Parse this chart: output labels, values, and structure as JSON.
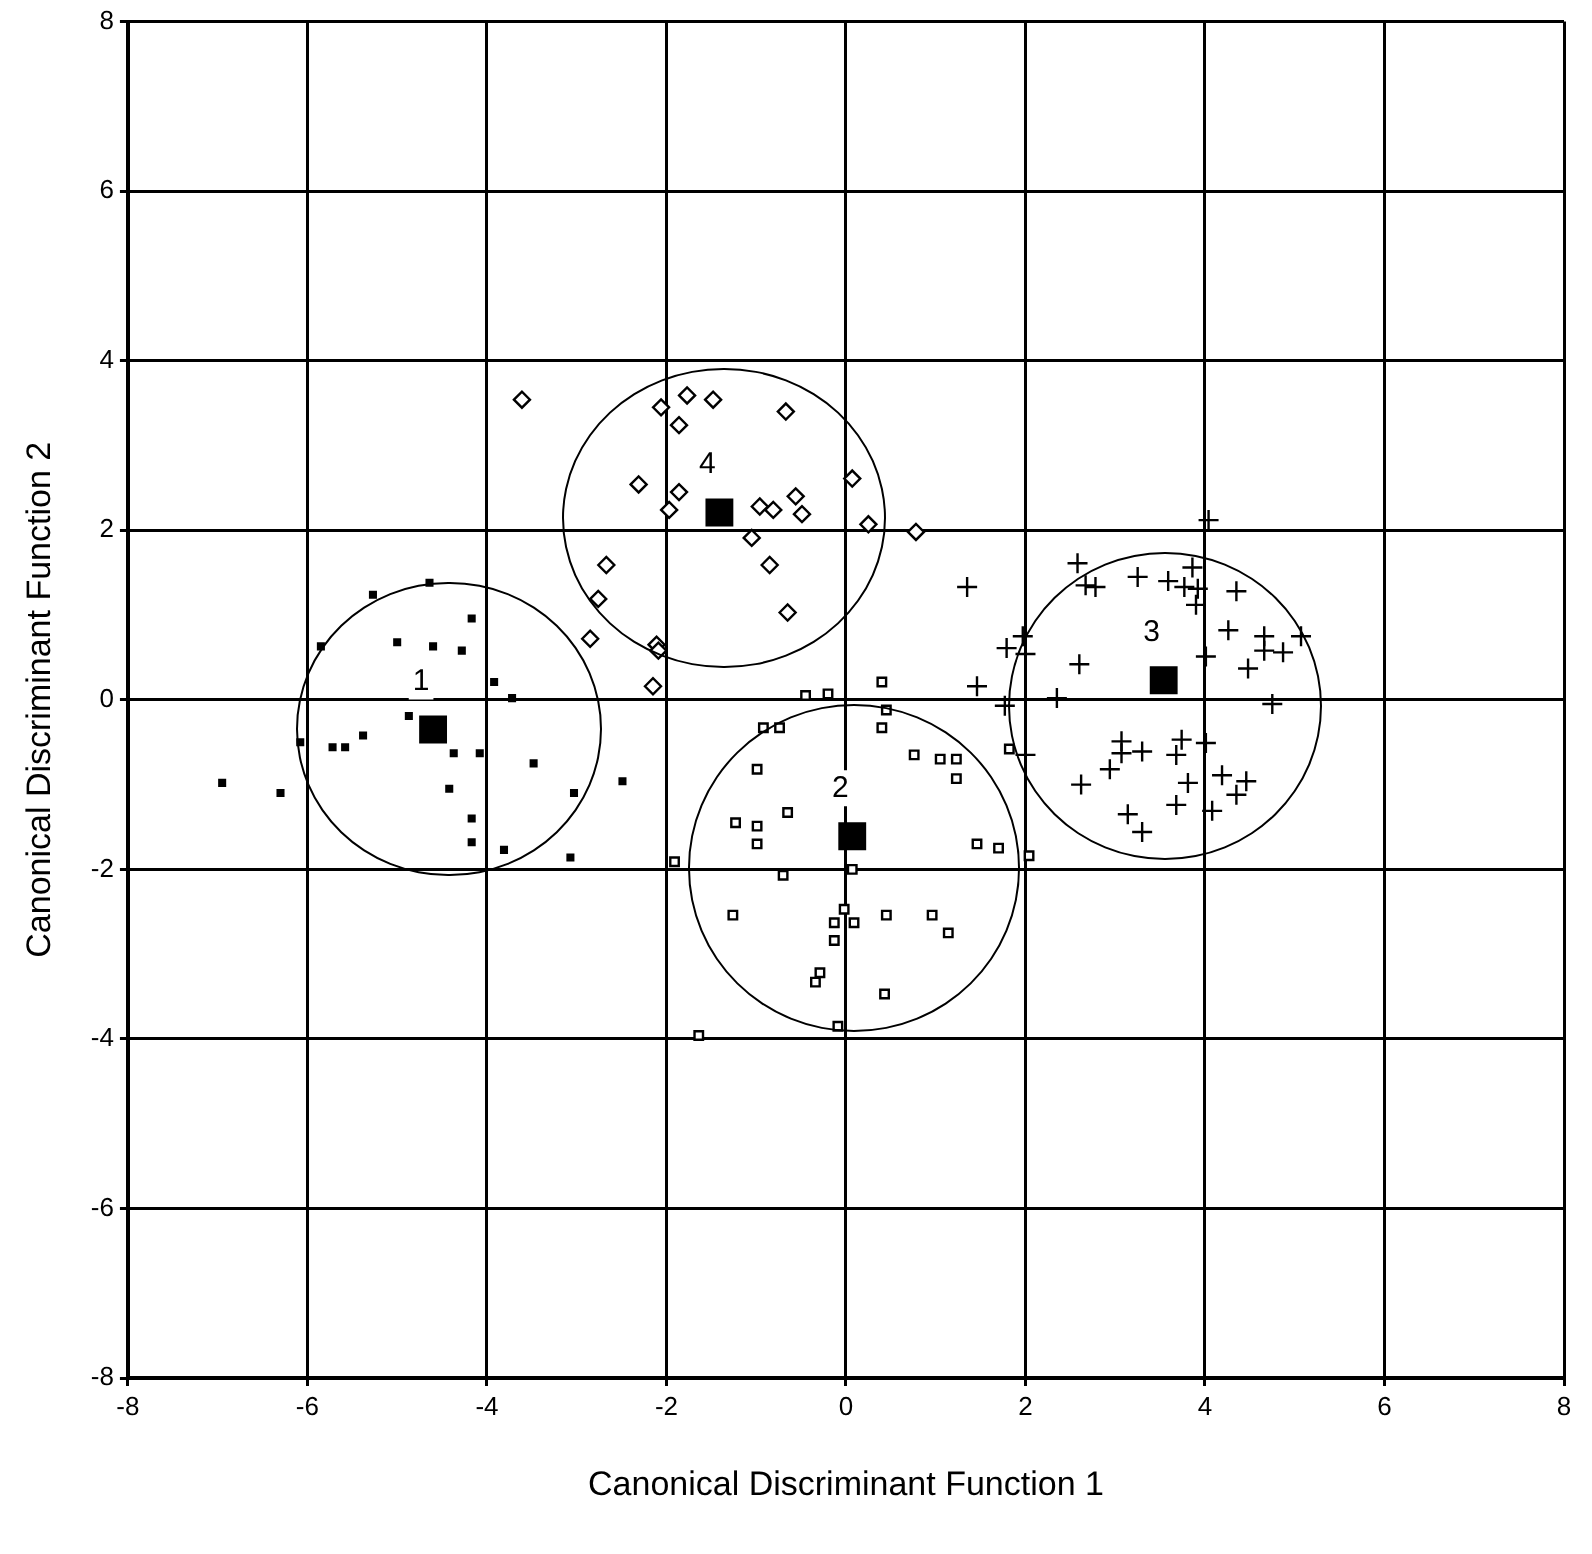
{
  "chart_data": {
    "type": "scatter",
    "xlabel": "Canonical Discriminant Function 1",
    "ylabel": "Canonical Discriminant Function 2",
    "xlim": [
      -8,
      8
    ],
    "ylim": [
      -8,
      8
    ],
    "xticks": [
      -8,
      -6,
      -4,
      -2,
      0,
      2,
      4,
      6,
      8
    ],
    "yticks": [
      -8,
      -6,
      -4,
      -2,
      0,
      2,
      4,
      6,
      8
    ],
    "grid": true,
    "legend": false,
    "annotations": [
      "1",
      "2",
      "3",
      "4"
    ],
    "series": [
      {
        "marker": "square",
        "color": "#000000",
        "x": [
          -5.27,
          -4.64,
          -4.17,
          -5.0,
          -4.6,
          -4.28,
          -3.92,
          -3.72,
          -4.87,
          -5.38,
          -5.72,
          -5.58,
          -4.37,
          -4.08,
          -3.48,
          -4.42,
          -3.03,
          -6.95,
          -6.3,
          -2.49,
          -4.17,
          -4.17,
          -3.81,
          -3.07,
          -5.85,
          -6.08
        ],
        "values": [
          1.24,
          1.38,
          0.96,
          0.68,
          0.63,
          0.58,
          0.21,
          0.02,
          -0.19,
          -0.42,
          -0.56,
          -0.56,
          -0.63,
          -0.63,
          -0.75,
          -1.05,
          -1.1,
          -0.98,
          -1.1,
          -0.96,
          -1.4,
          -1.68,
          -1.77,
          -1.86,
          0.63,
          -0.5
        ]
      },
      {
        "marker": "diamond",
        "color": "#000000",
        "x": [
          -3.61,
          -2.06,
          -1.77,
          -1.48,
          -1.86,
          -0.67,
          -2.31,
          -1.86,
          -1.97,
          -0.96,
          -0.81,
          -0.56,
          -0.49,
          0.07,
          0.25,
          0.78,
          -1.05,
          -0.85,
          -2.67,
          -2.76,
          -0.65,
          -2.85,
          -2.11,
          -2.09,
          -2.15
        ],
        "values": [
          3.54,
          3.45,
          3.59,
          3.54,
          3.24,
          3.4,
          2.54,
          2.45,
          2.24,
          2.28,
          2.24,
          2.4,
          2.19,
          2.61,
          2.07,
          1.98,
          1.91,
          1.59,
          1.59,
          1.19,
          1.03,
          0.72,
          0.65,
          0.58,
          0.16
        ]
      },
      {
        "marker": "square",
        "color": "#000000",
        "x": [
          0.4,
          -0.45,
          -0.2,
          0.45,
          -0.74,
          0.4,
          -0.92,
          0.76,
          1.05,
          1.23,
          1.23,
          1.82,
          -0.99,
          -1.23,
          -0.99,
          -0.65,
          -0.99,
          1.46,
          1.7,
          2.04,
          -0.7,
          -1.91,
          0.07,
          -1.26,
          -0.02,
          -0.13,
          0.09,
          0.45,
          0.96,
          1.14,
          -0.13,
          -0.29,
          -0.34,
          0.43,
          -0.09,
          -1.64
        ],
        "values": [
          0.21,
          0.05,
          0.07,
          -0.12,
          -0.33,
          -0.33,
          -0.33,
          -0.65,
          -0.7,
          -0.7,
          -0.93,
          -0.58,
          -0.82,
          -1.45,
          -1.49,
          -1.33,
          -1.7,
          -1.7,
          -1.75,
          -1.84,
          -2.07,
          -1.91,
          -2.0,
          -2.54,
          -2.47,
          -2.63,
          -2.63,
          -2.54,
          -2.54,
          -2.75,
          -2.84,
          -3.22,
          -3.33,
          -3.47,
          -3.85,
          -3.96
        ]
      },
      {
        "marker": "cross",
        "color": "#000000",
        "x": [
          4.04,
          2.58,
          2.67,
          2.78,
          1.35,
          3.25,
          3.59,
          3.86,
          3.77,
          3.92,
          3.9,
          4.35,
          1.97,
          1.79,
          2.0,
          2.6,
          4.26,
          4.66,
          5.07,
          4.01,
          4.66,
          4.87,
          4.48,
          1.46,
          2.35,
          1.77,
          4.75,
          2.0,
          3.07,
          3.07,
          3.3,
          3.74,
          4.01,
          3.68,
          2.94,
          2.62,
          3.81,
          4.19,
          4.46,
          4.35,
          3.68,
          4.08,
          3.14,
          3.3
        ],
        "values": [
          2.12,
          1.61,
          1.35,
          1.33,
          1.33,
          1.45,
          1.4,
          1.56,
          1.33,
          1.31,
          1.12,
          1.28,
          0.75,
          0.61,
          0.54,
          0.42,
          0.82,
          0.75,
          0.75,
          0.51,
          0.58,
          0.56,
          0.37,
          0.16,
          0.02,
          -0.07,
          -0.05,
          -0.65,
          -0.49,
          -0.63,
          -0.61,
          -0.47,
          -0.51,
          -0.65,
          -0.82,
          -1.0,
          -0.98,
          -0.89,
          -0.96,
          -1.12,
          -1.24,
          -1.31,
          -1.35,
          -1.56
        ]
      },
      {
        "marker": "square",
        "color": "#000000",
        "x": [
          -4.6,
          0.07,
          3.54,
          -1.41
        ],
        "values": [
          -0.35,
          -1.61,
          0.23,
          2.21
        ]
      }
    ]
  }
}
